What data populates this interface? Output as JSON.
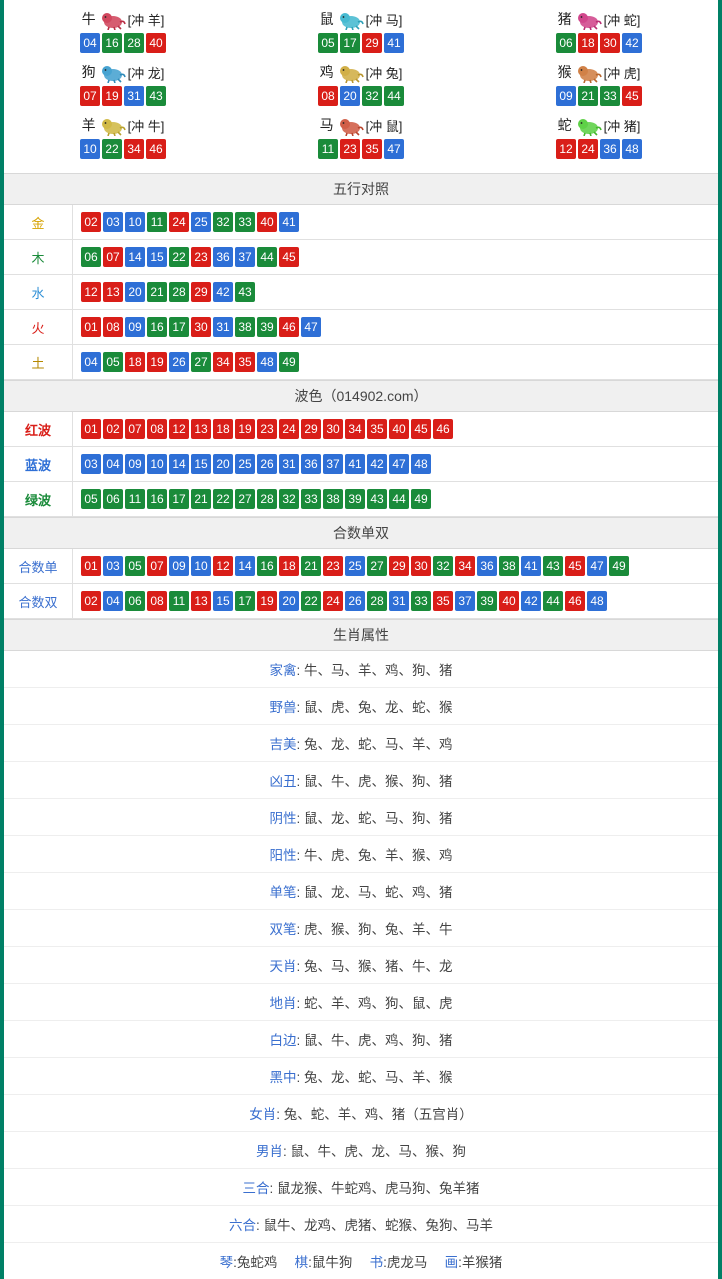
{
  "colors": {
    "r": "#d91e18",
    "b": "#2e6fd6",
    "g": "#1a8b3a",
    "outer_border": "#008066"
  },
  "ball_color_map": {
    "01": "r",
    "02": "r",
    "07": "r",
    "08": "r",
    "12": "r",
    "13": "r",
    "18": "r",
    "19": "r",
    "23": "r",
    "24": "r",
    "29": "r",
    "30": "r",
    "34": "r",
    "35": "r",
    "40": "r",
    "45": "r",
    "46": "r",
    "03": "b",
    "04": "b",
    "09": "b",
    "10": "b",
    "14": "b",
    "15": "b",
    "20": "b",
    "25": "b",
    "26": "b",
    "31": "b",
    "36": "b",
    "37": "b",
    "41": "b",
    "42": "b",
    "47": "b",
    "48": "b",
    "05": "g",
    "06": "g",
    "11": "g",
    "16": "g",
    "17": "g",
    "21": "g",
    "22": "g",
    "27": "g",
    "28": "g",
    "32": "g",
    "33": "g",
    "38": "g",
    "39": "g",
    "43": "g",
    "44": "g",
    "49": "g"
  },
  "zodiac": [
    {
      "name": "牛",
      "clash": "[冲 羊]",
      "svg_hue": 350,
      "balls": [
        "04",
        "16",
        "28",
        "40"
      ]
    },
    {
      "name": "鼠",
      "clash": "[冲 马]",
      "svg_hue": 190,
      "balls": [
        "05",
        "17",
        "29",
        "41"
      ]
    },
    {
      "name": "猪",
      "clash": "[冲 蛇]",
      "svg_hue": 330,
      "balls": [
        "06",
        "18",
        "30",
        "42"
      ]
    },
    {
      "name": "狗",
      "clash": "[冲 龙]",
      "svg_hue": 200,
      "balls": [
        "07",
        "19",
        "31",
        "43"
      ]
    },
    {
      "name": "鸡",
      "clash": "[冲 兔]",
      "svg_hue": 45,
      "balls": [
        "08",
        "20",
        "32",
        "44"
      ]
    },
    {
      "name": "猴",
      "clash": "[冲 虎]",
      "svg_hue": 25,
      "balls": [
        "09",
        "21",
        "33",
        "45"
      ]
    },
    {
      "name": "羊",
      "clash": "[冲 牛]",
      "svg_hue": 50,
      "balls": [
        "10",
        "22",
        "34",
        "46"
      ]
    },
    {
      "name": "马",
      "clash": "[冲 鼠]",
      "svg_hue": 10,
      "balls": [
        "11",
        "23",
        "35",
        "47"
      ]
    },
    {
      "name": "蛇",
      "clash": "[冲 猪]",
      "svg_hue": 110,
      "balls": [
        "12",
        "24",
        "36",
        "48"
      ]
    }
  ],
  "sections": {
    "wuxing_title": "五行对照",
    "wuxing": [
      {
        "label": "金",
        "cls": "c-gold",
        "balls": [
          "02",
          "03",
          "10",
          "11",
          "24",
          "25",
          "32",
          "33",
          "40",
          "41"
        ]
      },
      {
        "label": "木",
        "cls": "c-wood",
        "balls": [
          "06",
          "07",
          "14",
          "15",
          "22",
          "23",
          "36",
          "37",
          "44",
          "45"
        ]
      },
      {
        "label": "水",
        "cls": "c-water",
        "balls": [
          "12",
          "13",
          "20",
          "21",
          "28",
          "29",
          "42",
          "43"
        ]
      },
      {
        "label": "火",
        "cls": "c-fire",
        "balls": [
          "01",
          "08",
          "09",
          "16",
          "17",
          "30",
          "31",
          "38",
          "39",
          "46",
          "47"
        ]
      },
      {
        "label": "土",
        "cls": "c-earth",
        "balls": [
          "04",
          "05",
          "18",
          "19",
          "26",
          "27",
          "34",
          "35",
          "48",
          "49"
        ]
      }
    ],
    "bose_title": "波色（014902.com）",
    "bose": [
      {
        "label": "红波",
        "cls": "c-red",
        "balls": [
          "01",
          "02",
          "07",
          "08",
          "12",
          "13",
          "18",
          "19",
          "23",
          "24",
          "29",
          "30",
          "34",
          "35",
          "40",
          "45",
          "46"
        ]
      },
      {
        "label": "蓝波",
        "cls": "c-blue",
        "balls": [
          "03",
          "04",
          "09",
          "10",
          "14",
          "15",
          "20",
          "25",
          "26",
          "31",
          "36",
          "37",
          "41",
          "42",
          "47",
          "48"
        ]
      },
      {
        "label": "绿波",
        "cls": "c-green",
        "balls": [
          "05",
          "06",
          "11",
          "16",
          "17",
          "21",
          "22",
          "27",
          "28",
          "32",
          "33",
          "38",
          "39",
          "43",
          "44",
          "49"
        ]
      }
    ],
    "heshu_title": "合数单双",
    "heshu": [
      {
        "label": "合数单",
        "cls": "c-link",
        "balls": [
          "01",
          "03",
          "05",
          "07",
          "09",
          "10",
          "12",
          "14",
          "16",
          "18",
          "21",
          "23",
          "25",
          "27",
          "29",
          "30",
          "32",
          "34",
          "36",
          "38",
          "41",
          "43",
          "45",
          "47",
          "49"
        ]
      },
      {
        "label": "合数双",
        "cls": "c-link",
        "balls": [
          "02",
          "04",
          "06",
          "08",
          "11",
          "13",
          "15",
          "17",
          "19",
          "20",
          "22",
          "24",
          "26",
          "28",
          "31",
          "33",
          "35",
          "37",
          "39",
          "40",
          "42",
          "44",
          "46",
          "48"
        ]
      }
    ],
    "attr_title": "生肖属性",
    "attributes": [
      {
        "label": "家禽",
        "value": "牛、马、羊、鸡、狗、猪"
      },
      {
        "label": "野兽",
        "value": "鼠、虎、兔、龙、蛇、猴"
      },
      {
        "label": "吉美",
        "value": "兔、龙、蛇、马、羊、鸡"
      },
      {
        "label": "凶丑",
        "value": "鼠、牛、虎、猴、狗、猪"
      },
      {
        "label": "阴性",
        "value": "鼠、龙、蛇、马、狗、猪"
      },
      {
        "label": "阳性",
        "value": "牛、虎、兔、羊、猴、鸡"
      },
      {
        "label": "单笔",
        "value": "鼠、龙、马、蛇、鸡、猪"
      },
      {
        "label": "双笔",
        "value": "虎、猴、狗、兔、羊、牛"
      },
      {
        "label": "天肖",
        "value": "兔、马、猴、猪、牛、龙"
      },
      {
        "label": "地肖",
        "value": "蛇、羊、鸡、狗、鼠、虎"
      },
      {
        "label": "白边",
        "value": "鼠、牛、虎、鸡、狗、猪"
      },
      {
        "label": "黑中",
        "value": "兔、龙、蛇、马、羊、猴"
      },
      {
        "label": "女肖",
        "value": "兔、蛇、羊、鸡、猪（五宫肖）"
      },
      {
        "label": "男肖",
        "value": "鼠、牛、虎、龙、马、猴、狗"
      },
      {
        "label": "三合",
        "value": "鼠龙猴、牛蛇鸡、虎马狗、兔羊猪"
      },
      {
        "label": "六合",
        "value": "鼠牛、龙鸡、虎猪、蛇猴、兔狗、马羊"
      }
    ],
    "bottom_row": [
      {
        "label": "琴",
        "value": "兔蛇鸡"
      },
      {
        "label": "棋",
        "value": "鼠牛狗"
      },
      {
        "label": "书",
        "value": "虎龙马"
      },
      {
        "label": "画",
        "value": "羊猴猪"
      }
    ]
  }
}
